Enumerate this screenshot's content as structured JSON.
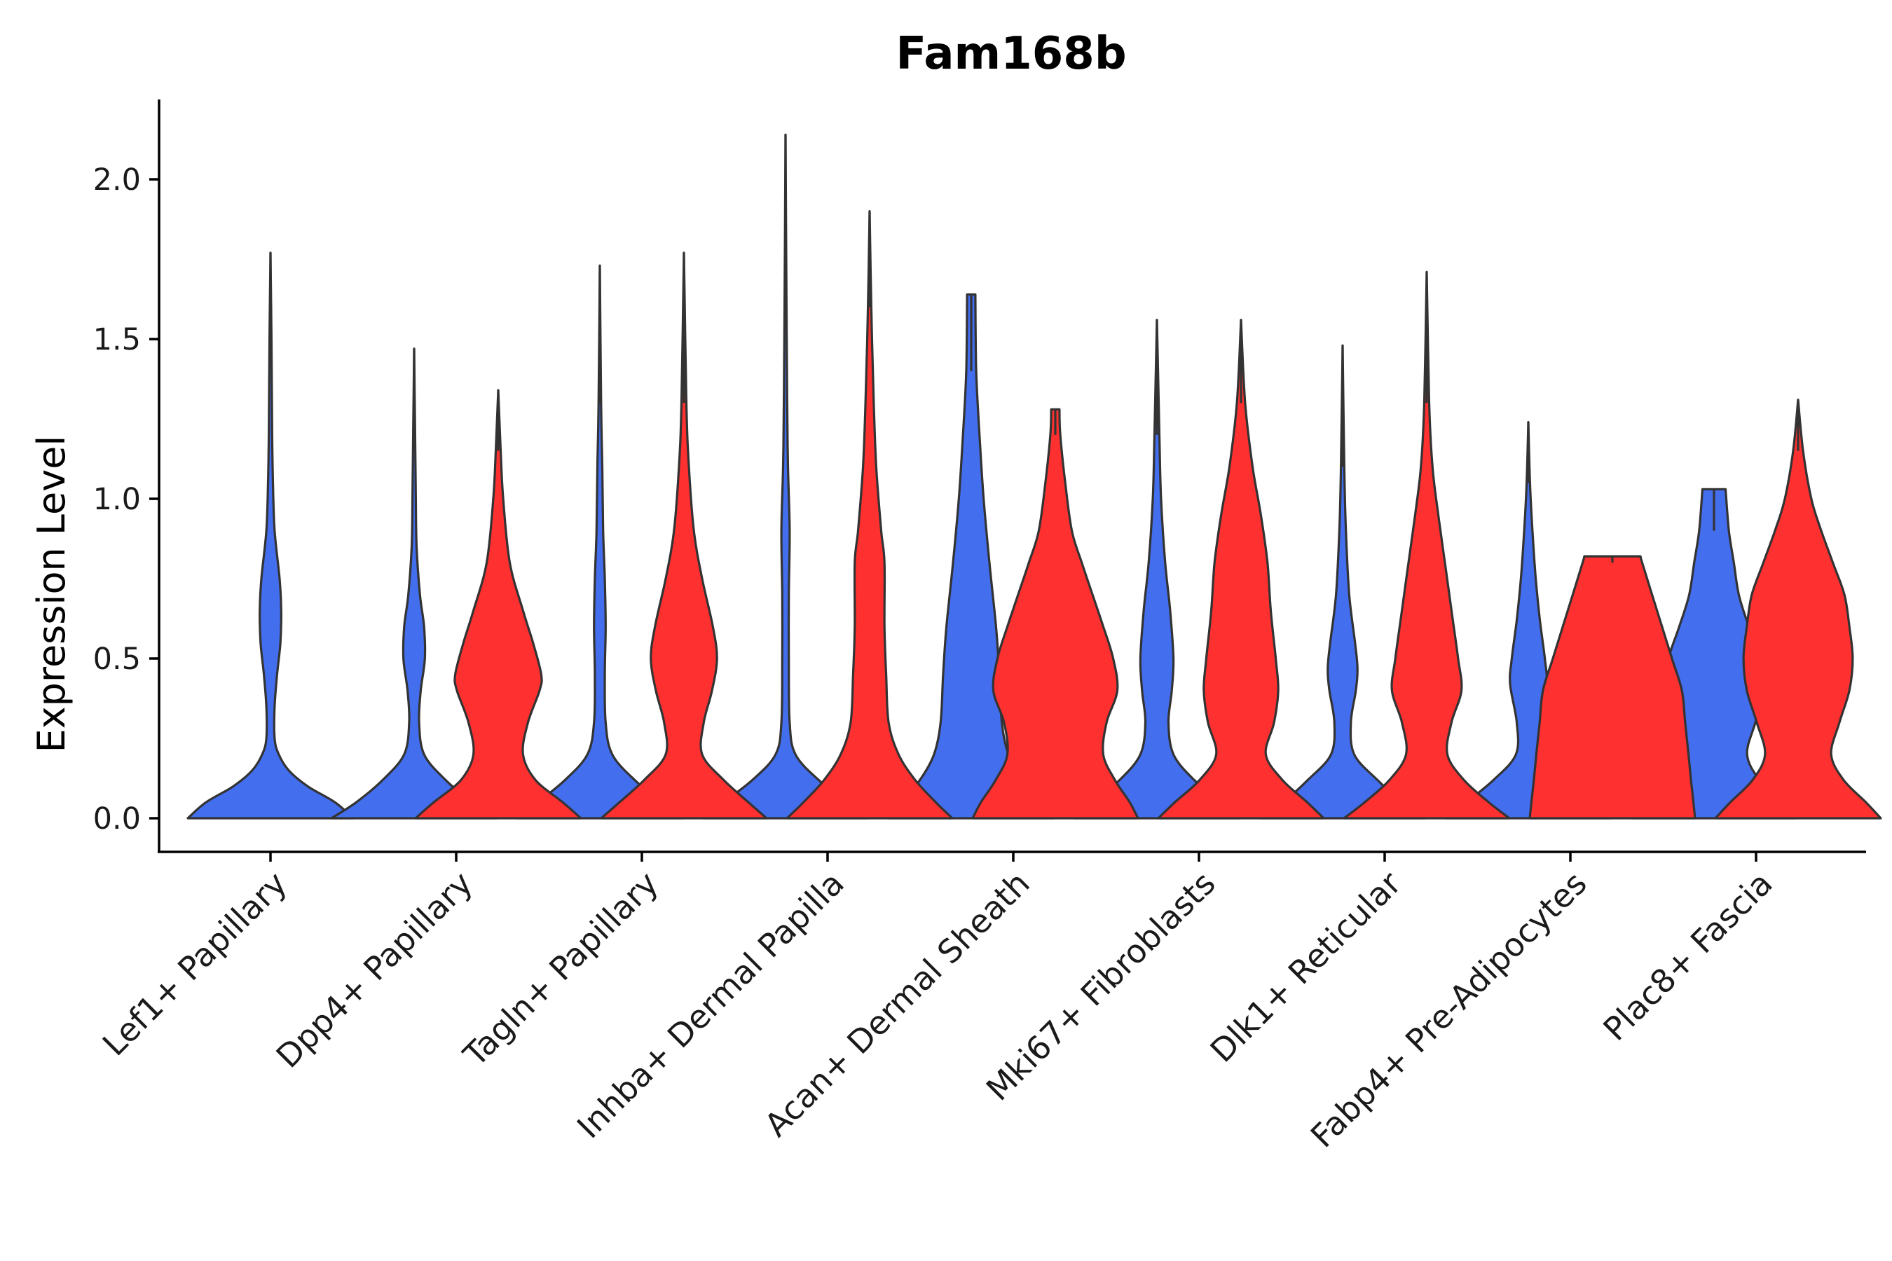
{
  "chart_data": {
    "type": "violin",
    "title": "Fam168b",
    "xlabel": "",
    "ylabel": "Expression Level",
    "ylim": [
      -0.11,
      2.25
    ],
    "yticks": [
      0.0,
      0.5,
      1.0,
      1.5,
      2.0
    ],
    "ytick_labels": [
      "0.0",
      "0.5",
      "1.0",
      "1.5",
      "2.0"
    ],
    "colors": {
      "group_1": "#436EEE",
      "group_2": "#FF3030",
      "outline": "#333333"
    },
    "categories": [
      "Lef1+ Papillary",
      "Dpp4+ Papillary",
      "Tagln+ Papillary",
      "Inhba+ Dermal Papilla",
      "Acan+ Dermal Sheath",
      "Mki67+ Fibroblasts",
      "Dlk1+ Reticular",
      "Fabp4+ Pre-Adipocytes",
      "Plac8+ Fascia"
    ],
    "series": [
      {
        "name": "group_1",
        "color": "#436EEE",
        "violins": [
          {
            "category": "Lef1+ Papillary",
            "max": 1.77,
            "profile": [
              [
                0,
                1.0
              ],
              [
                0.05,
                0.78
              ],
              [
                0.1,
                0.45
              ],
              [
                0.15,
                0.22
              ],
              [
                0.2,
                0.1
              ],
              [
                0.25,
                0.05
              ],
              [
                0.35,
                0.05
              ],
              [
                0.45,
                0.08
              ],
              [
                0.55,
                0.12
              ],
              [
                0.65,
                0.13
              ],
              [
                0.75,
                0.11
              ],
              [
                0.9,
                0.05
              ],
              [
                1.05,
                0.03
              ],
              [
                1.2,
                0.02
              ],
              [
                1.5,
                0.012
              ],
              [
                1.77,
                0.0
              ]
            ]
          },
          {
            "category": "Dpp4+ Papillary",
            "max": 1.47,
            "profile": [
              [
                0,
                1.0
              ],
              [
                0.05,
                0.7
              ],
              [
                0.12,
                0.38
              ],
              [
                0.2,
                0.12
              ],
              [
                0.3,
                0.06
              ],
              [
                0.4,
                0.08
              ],
              [
                0.5,
                0.13
              ],
              [
                0.6,
                0.12
              ],
              [
                0.7,
                0.07
              ],
              [
                0.85,
                0.03
              ],
              [
                1.0,
                0.02
              ],
              [
                1.2,
                0.012
              ],
              [
                1.47,
                0.0
              ]
            ]
          },
          {
            "category": "Tagln+ Papillary",
            "max": 1.73,
            "profile": [
              [
                0,
                1.0
              ],
              [
                0.05,
                0.75
              ],
              [
                0.12,
                0.42
              ],
              [
                0.2,
                0.15
              ],
              [
                0.3,
                0.07
              ],
              [
                0.45,
                0.06
              ],
              [
                0.6,
                0.07
              ],
              [
                0.75,
                0.06
              ],
              [
                0.9,
                0.04
              ],
              [
                1.1,
                0.03
              ],
              [
                1.3,
                0.015
              ],
              [
                1.73,
                0.0
              ]
            ]
          },
          {
            "category": "Inhba+ Dermal Papilla",
            "max": 2.14,
            "profile": [
              [
                0,
                1.0
              ],
              [
                0.05,
                0.75
              ],
              [
                0.12,
                0.4
              ],
              [
                0.2,
                0.12
              ],
              [
                0.3,
                0.05
              ],
              [
                0.5,
                0.04
              ],
              [
                0.7,
                0.04
              ],
              [
                0.9,
                0.05
              ],
              [
                1.1,
                0.03
              ],
              [
                1.3,
                0.02
              ],
              [
                1.6,
                0.012
              ],
              [
                2.14,
                0.0
              ]
            ]
          },
          {
            "category": "Acan+ Dermal Sheath",
            "max": 1.64,
            "profile": [
              [
                0,
                1.0
              ],
              [
                0.05,
                0.85
              ],
              [
                0.12,
                0.62
              ],
              [
                0.2,
                0.45
              ],
              [
                0.3,
                0.37
              ],
              [
                0.45,
                0.34
              ],
              [
                0.6,
                0.3
              ],
              [
                0.8,
                0.22
              ],
              [
                1.0,
                0.15
              ],
              [
                1.2,
                0.1
              ],
              [
                1.4,
                0.06
              ],
              [
                1.64,
                0.05
              ]
            ]
          },
          {
            "category": "Mki67+ Fibroblasts",
            "max": 1.56,
            "profile": [
              [
                0,
                1.0
              ],
              [
                0.05,
                0.78
              ],
              [
                0.12,
                0.45
              ],
              [
                0.2,
                0.2
              ],
              [
                0.3,
                0.14
              ],
              [
                0.4,
                0.18
              ],
              [
                0.5,
                0.2
              ],
              [
                0.65,
                0.16
              ],
              [
                0.8,
                0.1
              ],
              [
                1.0,
                0.05
              ],
              [
                1.2,
                0.03
              ],
              [
                1.56,
                0.0
              ]
            ]
          },
          {
            "category": "Dlk1+ Reticular",
            "max": 1.48,
            "profile": [
              [
                0,
                1.0
              ],
              [
                0.05,
                0.72
              ],
              [
                0.12,
                0.42
              ],
              [
                0.2,
                0.14
              ],
              [
                0.3,
                0.1
              ],
              [
                0.4,
                0.16
              ],
              [
                0.47,
                0.18
              ],
              [
                0.55,
                0.15
              ],
              [
                0.7,
                0.08
              ],
              [
                0.9,
                0.04
              ],
              [
                1.1,
                0.02
              ],
              [
                1.48,
                0.0
              ]
            ]
          },
          {
            "category": "Fabp4+ Pre-Adipocytes",
            "max": 1.24,
            "profile": [
              [
                0,
                1.0
              ],
              [
                0.05,
                0.75
              ],
              [
                0.12,
                0.42
              ],
              [
                0.2,
                0.15
              ],
              [
                0.3,
                0.14
              ],
              [
                0.42,
                0.22
              ],
              [
                0.5,
                0.2
              ],
              [
                0.62,
                0.14
              ],
              [
                0.75,
                0.09
              ],
              [
                0.9,
                0.05
              ],
              [
                1.05,
                0.02
              ],
              [
                1.24,
                0.0
              ]
            ]
          },
          {
            "category": "Plac8+ Fascia",
            "max": 1.03,
            "profile": [
              [
                0,
                1.0
              ],
              [
                0.05,
                0.82
              ],
              [
                0.12,
                0.55
              ],
              [
                0.2,
                0.4
              ],
              [
                0.3,
                0.5
              ],
              [
                0.4,
                0.6
              ],
              [
                0.5,
                0.55
              ],
              [
                0.6,
                0.42
              ],
              [
                0.7,
                0.3
              ],
              [
                0.8,
                0.24
              ],
              [
                0.9,
                0.18
              ],
              [
                1.03,
                0.14
              ]
            ]
          }
        ]
      },
      {
        "name": "group_2",
        "color": "#FF3030",
        "violins": [
          {
            "category": "Dpp4+ Papillary",
            "max": 1.34,
            "profile": [
              [
                0,
                1.0
              ],
              [
                0.05,
                0.78
              ],
              [
                0.12,
                0.45
              ],
              [
                0.2,
                0.3
              ],
              [
                0.3,
                0.36
              ],
              [
                0.4,
                0.5
              ],
              [
                0.45,
                0.52
              ],
              [
                0.55,
                0.42
              ],
              [
                0.65,
                0.3
              ],
              [
                0.8,
                0.14
              ],
              [
                1.0,
                0.06
              ],
              [
                1.15,
                0.03
              ],
              [
                1.34,
                0.0
              ]
            ]
          },
          {
            "category": "Tagln+ Papillary",
            "max": 1.77,
            "profile": [
              [
                0,
                1.0
              ],
              [
                0.05,
                0.78
              ],
              [
                0.12,
                0.48
              ],
              [
                0.2,
                0.22
              ],
              [
                0.3,
                0.24
              ],
              [
                0.4,
                0.34
              ],
              [
                0.5,
                0.4
              ],
              [
                0.6,
                0.35
              ],
              [
                0.75,
                0.22
              ],
              [
                0.9,
                0.12
              ],
              [
                1.1,
                0.06
              ],
              [
                1.3,
                0.03
              ],
              [
                1.77,
                0.0
              ]
            ]
          },
          {
            "category": "Inhba+ Dermal Papilla",
            "max": 1.9,
            "profile": [
              [
                0,
                1.0
              ],
              [
                0.05,
                0.8
              ],
              [
                0.12,
                0.55
              ],
              [
                0.2,
                0.35
              ],
              [
                0.3,
                0.23
              ],
              [
                0.45,
                0.2
              ],
              [
                0.6,
                0.18
              ],
              [
                0.8,
                0.18
              ],
              [
                0.9,
                0.14
              ],
              [
                1.1,
                0.08
              ],
              [
                1.3,
                0.05
              ],
              [
                1.6,
                0.02
              ],
              [
                1.9,
                0.0
              ]
            ]
          },
          {
            "category": "Acan+ Dermal Sheath",
            "max": 1.28,
            "profile": [
              [
                0,
                1.0
              ],
              [
                0.05,
                0.9
              ],
              [
                0.12,
                0.72
              ],
              [
                0.2,
                0.58
              ],
              [
                0.3,
                0.62
              ],
              [
                0.4,
                0.75
              ],
              [
                0.5,
                0.7
              ],
              [
                0.6,
                0.58
              ],
              [
                0.7,
                0.45
              ],
              [
                0.8,
                0.32
              ],
              [
                0.9,
                0.2
              ],
              [
                1.05,
                0.12
              ],
              [
                1.2,
                0.06
              ],
              [
                1.28,
                0.05
              ]
            ]
          },
          {
            "category": "Mki67+ Fibroblasts",
            "max": 1.56,
            "profile": [
              [
                0,
                1.0
              ],
              [
                0.05,
                0.8
              ],
              [
                0.12,
                0.5
              ],
              [
                0.2,
                0.3
              ],
              [
                0.3,
                0.4
              ],
              [
                0.4,
                0.45
              ],
              [
                0.5,
                0.42
              ],
              [
                0.65,
                0.36
              ],
              [
                0.8,
                0.32
              ],
              [
                0.95,
                0.24
              ],
              [
                1.1,
                0.14
              ],
              [
                1.3,
                0.05
              ],
              [
                1.56,
                0.0
              ]
            ]
          },
          {
            "category": "Dlk1+ Reticular",
            "max": 1.71,
            "profile": [
              [
                0,
                1.0
              ],
              [
                0.05,
                0.75
              ],
              [
                0.12,
                0.45
              ],
              [
                0.2,
                0.25
              ],
              [
                0.3,
                0.3
              ],
              [
                0.4,
                0.42
              ],
              [
                0.5,
                0.38
              ],
              [
                0.65,
                0.3
              ],
              [
                0.8,
                0.22
              ],
              [
                0.95,
                0.14
              ],
              [
                1.1,
                0.07
              ],
              [
                1.3,
                0.03
              ],
              [
                1.71,
                0.0
              ]
            ]
          },
          {
            "category": "Fabp4+ Pre-Adipocytes",
            "max": 0.82,
            "profile": [
              [
                0,
                1.0
              ],
              [
                0.05,
                0.98
              ],
              [
                0.12,
                0.95
              ],
              [
                0.2,
                0.92
              ],
              [
                0.3,
                0.88
              ],
              [
                0.4,
                0.84
              ],
              [
                0.5,
                0.72
              ],
              [
                0.6,
                0.6
              ],
              [
                0.7,
                0.48
              ],
              [
                0.8,
                0.36
              ],
              [
                0.82,
                0.34
              ]
            ]
          },
          {
            "category": "Plac8+ Fascia",
            "max": 1.31,
            "profile": [
              [
                0,
                1.0
              ],
              [
                0.05,
                0.82
              ],
              [
                0.12,
                0.55
              ],
              [
                0.2,
                0.4
              ],
              [
                0.3,
                0.5
              ],
              [
                0.4,
                0.62
              ],
              [
                0.5,
                0.66
              ],
              [
                0.6,
                0.62
              ],
              [
                0.7,
                0.56
              ],
              [
                0.8,
                0.42
              ],
              [
                0.9,
                0.28
              ],
              [
                1.0,
                0.16
              ],
              [
                1.15,
                0.06
              ],
              [
                1.31,
                0.0
              ]
            ]
          }
        ]
      }
    ]
  }
}
